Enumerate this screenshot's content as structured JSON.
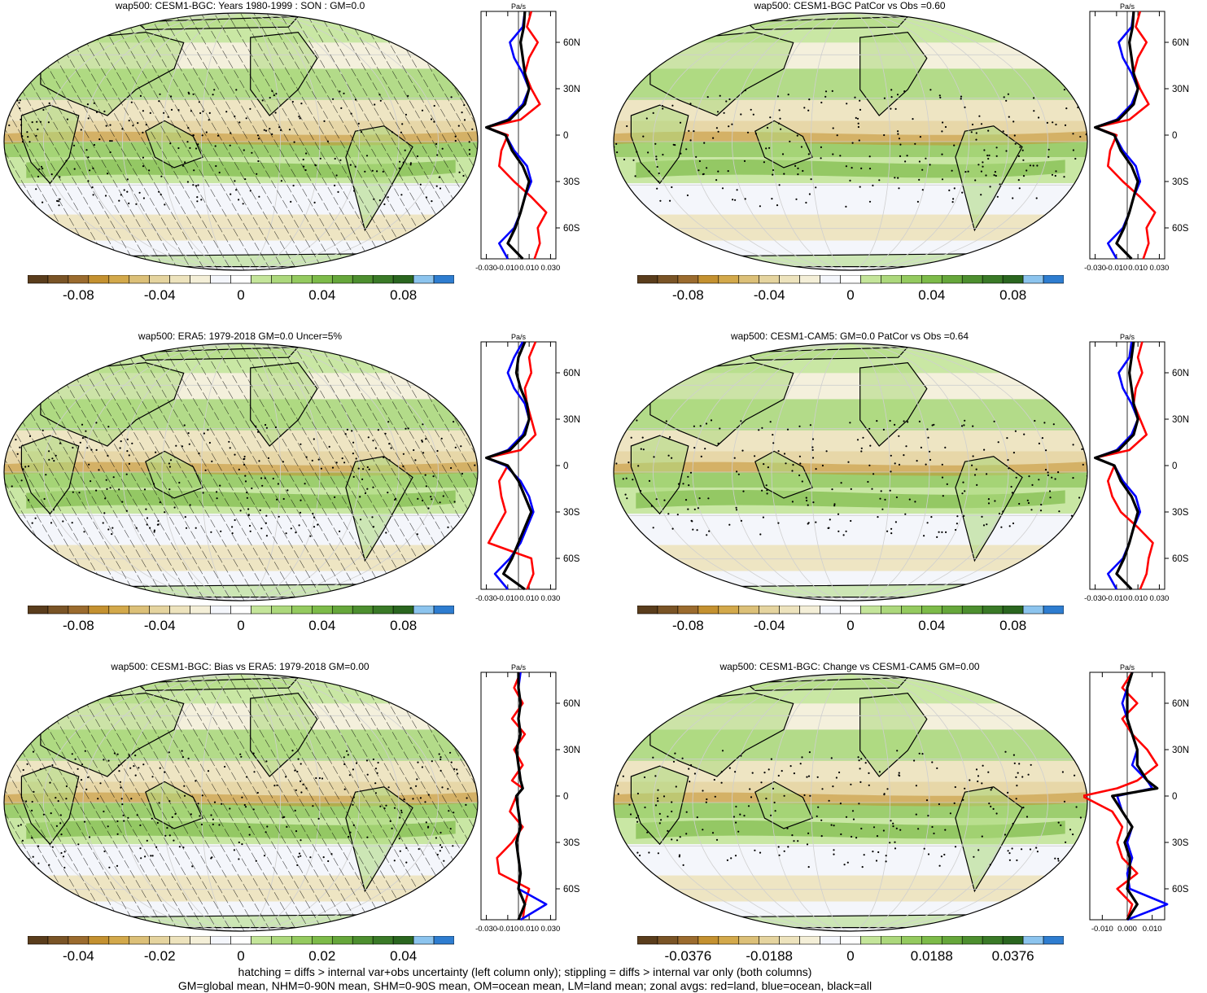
{
  "colors": {
    "cbar": [
      "#5a3d1c",
      "#7a5426",
      "#9b6b2e",
      "#c49130",
      "#d3a94b",
      "#dcc078",
      "#e5d49f",
      "#ede3bd",
      "#f4efd8",
      "#f4f6fb",
      "#ffffff",
      "#c4e59a",
      "#acd87c",
      "#94ca5f",
      "#7dbb49",
      "#66a73b",
      "#4d8f2f",
      "#3a7a27",
      "#2a661f",
      "#8cc4ee",
      "#2e7dd0"
    ],
    "land": "#e05a2a",
    "zonal_land": "#ff0000",
    "zonal_ocean": "#0000ff",
    "zonal_all": "#000000"
  },
  "panels": [
    {
      "title": "wap500: CESM1-BGC: Years 1980-1999 : SON : GM=0.0",
      "cbar_labels": [
        "-0.08",
        "-0.04",
        "0",
        "0.04",
        "0.08"
      ],
      "profile_unit": "Pa/s",
      "profile_x_ticks": [
        "-0.030",
        "-0.010",
        "0.010",
        "0.030"
      ],
      "profile_lat_labels": [
        "60N",
        "30N",
        "0",
        "30S",
        "60S"
      ],
      "hatched": true,
      "stippled": true
    },
    {
      "title": "wap500: CESM1-BGC PatCor vs Obs =0.60",
      "cbar_labels": [
        "-0.08",
        "-0.04",
        "0",
        "0.04",
        "0.08"
      ],
      "profile_unit": "Pa/s",
      "profile_x_ticks": [
        "-0.030",
        "-0.010",
        "0.010",
        "0.030"
      ],
      "profile_lat_labels": [
        "60N",
        "30N",
        "0",
        "30S",
        "60S"
      ],
      "hatched": false,
      "stippled": true
    },
    {
      "title": "wap500: ERA5: 1979-2018 GM=0.0 Uncer=5%",
      "cbar_labels": [
        "-0.08",
        "-0.04",
        "0",
        "0.04",
        "0.08"
      ],
      "profile_unit": "Pa/s",
      "profile_x_ticks": [
        "-0.030",
        "-0.010",
        "0.010",
        "0.030"
      ],
      "profile_lat_labels": [
        "60N",
        "30N",
        "0",
        "30S",
        "60S"
      ],
      "hatched": true,
      "stippled": true
    },
    {
      "title": "wap500: CESM1-CAM5: GM=0.0 PatCor vs Obs =0.64",
      "cbar_labels": [
        "-0.08",
        "-0.04",
        "0",
        "0.04",
        "0.08"
      ],
      "profile_unit": "Pa/s",
      "profile_x_ticks": [
        "-0.030",
        "-0.010",
        "0.010",
        "0.030"
      ],
      "profile_lat_labels": [
        "60N",
        "30N",
        "0",
        "30S",
        "60S"
      ],
      "hatched": false,
      "stippled": true
    },
    {
      "title": "wap500: CESM1-BGC: Bias vs ERA5: 1979-2018  GM=0.00",
      "cbar_labels": [
        "-0.04",
        "-0.02",
        "0",
        "0.02",
        "0.04"
      ],
      "profile_unit": "Pa/s",
      "profile_x_ticks": [
        "-0.030",
        "-0.010",
        "0.010",
        "0.030"
      ],
      "profile_lat_labels": [
        "60N",
        "30N",
        "0",
        "30S",
        "60S"
      ],
      "hatched": true,
      "stippled": true
    },
    {
      "title": "wap500: CESM1-BGC: Change vs CESM1-CAM5 GM=0.00",
      "cbar_labels": [
        "-0.0376",
        "-0.0188",
        "0",
        "0.0188",
        "0.0376"
      ],
      "profile_unit": "Pa/s",
      "profile_x_ticks": [
        "-0.010",
        "0.000",
        "0.010"
      ],
      "profile_lat_labels": [
        "60N",
        "30N",
        "0",
        "30S",
        "60S"
      ],
      "hatched": false,
      "stippled": true
    }
  ],
  "footer": {
    "line1": "hatching = diffs > internal var+obs uncertainty (left column only); stippling = diffs > internal var only (both columns)",
    "line2": "GM=global mean, NHM=0-90N mean, SHM=0-90S mean, OM=ocean mean, LM=land mean; zonal avgs: red=land, blue=ocean, black=all"
  },
  "chart_data": [
    {
      "type": "heatmap",
      "title": "wap500: CESM1-BGC: Years 1980-1999 : SON : GM=0.0",
      "colorbar_ticks": [
        -0.08,
        -0.04,
        0,
        0.04,
        0.08
      ],
      "zonal_profile": {
        "xlabel": "Pa/s",
        "xticks": [
          -0.03,
          -0.01,
          0.01,
          0.03
        ],
        "lat": [
          80,
          70,
          60,
          50,
          40,
          30,
          20,
          10,
          5,
          0,
          -10,
          -20,
          -30,
          -40,
          -50,
          -60,
          -70,
          -80
        ],
        "land": [
          0.012,
          0.008,
          0.018,
          0.01,
          0.006,
          0.012,
          0.02,
          0.002,
          -0.03,
          -0.01,
          -0.016,
          -0.018,
          -0.004,
          0.012,
          0.026,
          0.018,
          0.02,
          0.015
        ],
        "ocean": [
          0.006,
          0.004,
          -0.008,
          -0.004,
          0.004,
          0.01,
          0.004,
          -0.01,
          -0.03,
          -0.012,
          -0.004,
          0.008,
          0.012,
          0.006,
          0.002,
          -0.004,
          -0.018,
          -0.01
        ],
        "all": [
          0.006,
          0.005,
          0.002,
          0.004,
          0.006,
          0.01,
          0.006,
          -0.008,
          -0.03,
          -0.012,
          -0.006,
          0.004,
          0.01,
          0.006,
          0.002,
          -0.003,
          -0.01,
          0.004
        ]
      }
    },
    {
      "type": "heatmap",
      "title": "wap500: CESM1-BGC PatCor vs Obs =0.60",
      "colorbar_ticks": [
        -0.08,
        -0.04,
        0,
        0.04,
        0.08
      ],
      "zonal_profile": {
        "xlabel": "Pa/s",
        "xticks": [
          -0.03,
          -0.01,
          0.01,
          0.03
        ],
        "lat": [
          80,
          70,
          60,
          50,
          40,
          30,
          20,
          10,
          5,
          0,
          -10,
          -20,
          -30,
          -40,
          -50,
          -60,
          -70,
          -80
        ],
        "land": [
          0.012,
          0.008,
          0.018,
          0.01,
          0.006,
          0.012,
          0.02,
          0.002,
          -0.03,
          -0.01,
          -0.016,
          -0.018,
          -0.004,
          0.012,
          0.026,
          0.018,
          0.02,
          0.015
        ],
        "ocean": [
          0.006,
          0.004,
          -0.008,
          -0.004,
          0.004,
          0.01,
          0.004,
          -0.01,
          -0.03,
          -0.012,
          -0.004,
          0.008,
          0.012,
          0.006,
          0.002,
          -0.004,
          -0.018,
          -0.01
        ],
        "all": [
          0.006,
          0.005,
          0.002,
          0.004,
          0.006,
          0.01,
          0.006,
          -0.008,
          -0.03,
          -0.012,
          -0.006,
          0.004,
          0.01,
          0.006,
          0.002,
          -0.003,
          -0.01,
          0.004
        ]
      }
    },
    {
      "type": "heatmap",
      "title": "wap500: ERA5: 1979-2018 GM=0.0 Uncer=5%",
      "colorbar_ticks": [
        -0.08,
        -0.04,
        0,
        0.04,
        0.08
      ],
      "zonal_profile": {
        "xlabel": "Pa/s",
        "xticks": [
          -0.03,
          -0.01,
          0.01,
          0.03
        ],
        "lat": [
          80,
          70,
          60,
          50,
          40,
          30,
          20,
          10,
          5,
          0,
          -10,
          -20,
          -30,
          -40,
          -50,
          -60,
          -70,
          -80
        ],
        "land": [
          0.016,
          0.01,
          0.012,
          0.006,
          0.008,
          0.012,
          0.016,
          0.002,
          -0.03,
          -0.01,
          -0.018,
          -0.016,
          -0.012,
          -0.02,
          -0.028,
          0.012,
          0.014,
          0.008
        ],
        "ocean": [
          0.004,
          -0.004,
          -0.01,
          -0.004,
          0.006,
          0.01,
          0.004,
          -0.01,
          -0.03,
          -0.012,
          0.002,
          0.01,
          0.014,
          0.008,
          0.002,
          -0.008,
          -0.022,
          -0.01
        ],
        "all": [
          0.006,
          0.0,
          -0.002,
          0.002,
          0.008,
          0.01,
          0.006,
          -0.008,
          -0.03,
          -0.01,
          0.0,
          0.006,
          0.012,
          0.006,
          0.0,
          -0.006,
          -0.014,
          0.006
        ]
      }
    },
    {
      "type": "heatmap",
      "title": "wap500: CESM1-CAM5: GM=0.0 PatCor vs Obs =0.64",
      "colorbar_ticks": [
        -0.08,
        -0.04,
        0,
        0.04,
        0.08
      ],
      "zonal_profile": {
        "xlabel": "Pa/s",
        "xticks": [
          -0.03,
          -0.01,
          0.01,
          0.03
        ],
        "lat": [
          80,
          70,
          60,
          50,
          40,
          30,
          20,
          10,
          5,
          0,
          -10,
          -20,
          -30,
          -40,
          -50,
          -60,
          -70,
          -80
        ],
        "land": [
          0.014,
          0.01,
          0.014,
          0.008,
          0.006,
          0.012,
          0.018,
          0.002,
          -0.03,
          -0.012,
          -0.018,
          -0.014,
          -0.006,
          0.01,
          0.024,
          0.02,
          0.018,
          0.012
        ],
        "ocean": [
          0.004,
          0.002,
          -0.008,
          -0.004,
          0.004,
          0.01,
          0.004,
          -0.01,
          -0.03,
          -0.012,
          -0.004,
          0.008,
          0.012,
          0.006,
          0.002,
          -0.004,
          -0.018,
          -0.01
        ],
        "all": [
          0.006,
          0.004,
          0.002,
          0.004,
          0.006,
          0.01,
          0.006,
          -0.008,
          -0.03,
          -0.012,
          -0.006,
          0.004,
          0.01,
          0.006,
          0.002,
          -0.003,
          -0.01,
          0.004
        ]
      }
    },
    {
      "type": "heatmap",
      "title": "wap500: CESM1-BGC: Bias vs ERA5: 1979-2018  GM=0.00",
      "colorbar_ticks": [
        -0.04,
        -0.02,
        0,
        0.02,
        0.04
      ],
      "zonal_profile": {
        "xlabel": "Pa/s",
        "xticks": [
          -0.03,
          -0.01,
          0.01,
          0.03
        ],
        "lat": [
          80,
          70,
          60,
          50,
          40,
          30,
          20,
          10,
          5,
          0,
          -10,
          -20,
          -30,
          -40,
          -50,
          -60,
          -70,
          -80
        ],
        "land": [
          0.002,
          -0.004,
          0.004,
          -0.006,
          0.006,
          -0.004,
          0.004,
          -0.006,
          0.004,
          -0.002,
          -0.008,
          0.004,
          -0.006,
          -0.02,
          -0.018,
          0.01,
          0.006,
          0.004
        ],
        "ocean": [
          0.002,
          0.0,
          0.002,
          0.0,
          0.002,
          -0.002,
          0.0,
          0.002,
          0.004,
          -0.002,
          0.0,
          0.002,
          -0.002,
          0.0,
          0.002,
          0.0,
          0.026,
          0.002
        ],
        "all": [
          0.0,
          0.0,
          0.002,
          0.0,
          0.002,
          -0.002,
          0.0,
          0.002,
          0.004,
          -0.002,
          0.0,
          0.002,
          -0.002,
          0.0,
          0.002,
          0.0,
          0.006,
          0.0
        ]
      }
    },
    {
      "type": "heatmap",
      "title": "wap500: CESM1-BGC: Change vs CESM1-CAM5 GM=0.00",
      "colorbar_ticks": [
        -0.0376,
        -0.0188,
        0,
        0.0188,
        0.0376
      ],
      "zonal_profile": {
        "xlabel": "Pa/s",
        "xticks": [
          -0.01,
          0.0,
          0.01
        ],
        "lat": [
          80,
          70,
          60,
          50,
          40,
          30,
          20,
          10,
          5,
          0,
          -10,
          -20,
          -30,
          -40,
          -50,
          -60,
          -70,
          -80
        ],
        "land": [
          0.002,
          -0.002,
          0.004,
          -0.002,
          0.002,
          0.008,
          0.012,
          0.004,
          -0.004,
          -0.018,
          -0.006,
          -0.002,
          -0.004,
          -0.002,
          0.004,
          -0.004,
          0.002,
          0.0
        ],
        "ocean": [
          0.002,
          0.0,
          -0.002,
          0.0,
          0.002,
          0.004,
          0.002,
          0.008,
          0.01,
          -0.004,
          -0.002,
          0.002,
          0.0,
          0.002,
          0.0,
          0.001,
          0.016,
          0.0
        ],
        "all": [
          0.002,
          0.0,
          0.0,
          0.0,
          0.002,
          0.004,
          0.004,
          0.008,
          0.012,
          -0.006,
          -0.002,
          0.002,
          -0.001,
          0.001,
          0.001,
          0.0,
          0.004,
          0.0
        ]
      }
    }
  ]
}
